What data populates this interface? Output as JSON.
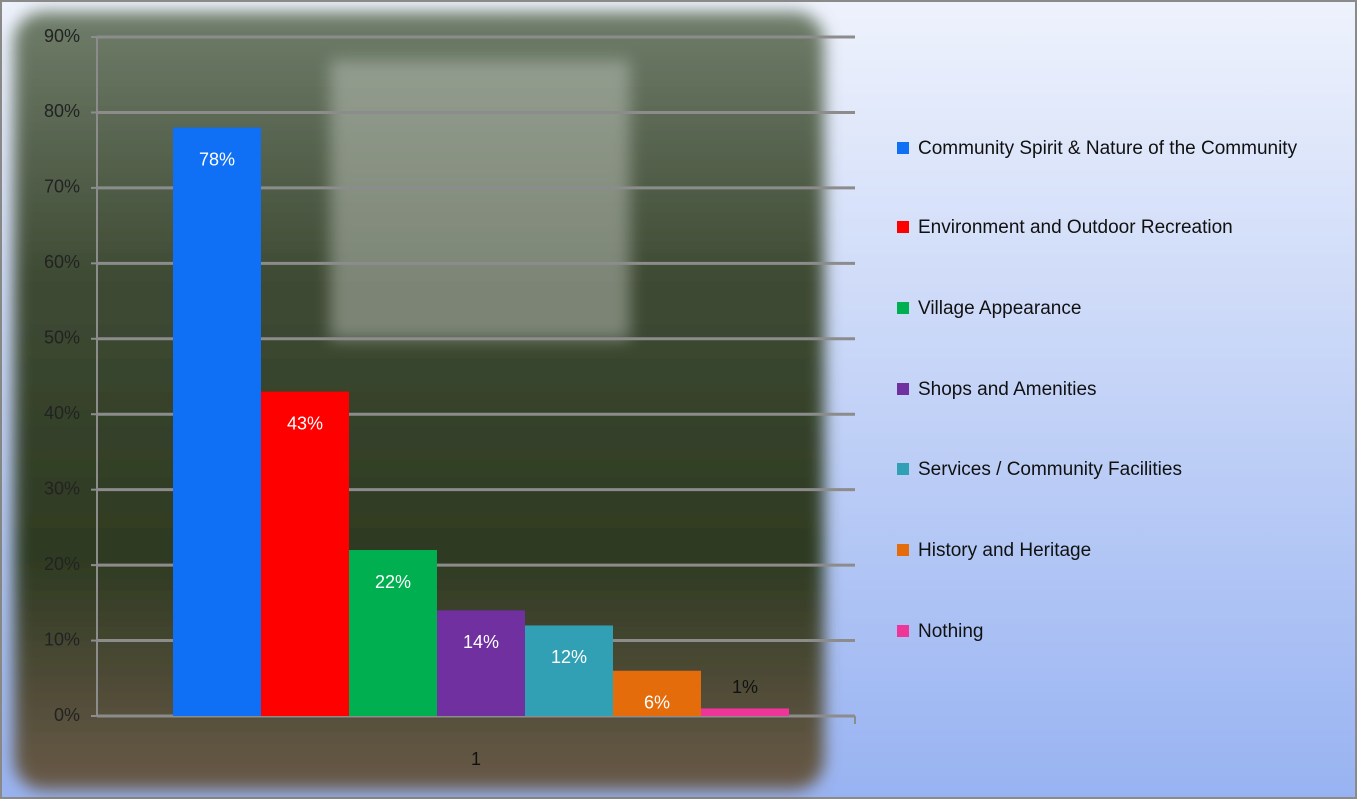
{
  "chart_data": {
    "type": "bar",
    "categories": [
      "1"
    ],
    "series": [
      {
        "name": "Community Spirit & Nature of the Community",
        "color": "#0f6ff5",
        "values": [
          78
        ],
        "value_labels": [
          "78%"
        ]
      },
      {
        "name": "Environment and Outdoor Recreation",
        "color": "#ff0000",
        "values": [
          43
        ],
        "value_labels": [
          "43%"
        ]
      },
      {
        "name": "Village Appearance",
        "color": "#00b050",
        "values": [
          22
        ],
        "value_labels": [
          "22%"
        ]
      },
      {
        "name": "Shops and Amenities",
        "color": "#7030a0",
        "values": [
          14
        ],
        "value_labels": [
          "14%"
        ]
      },
      {
        "name": "Services / Community Facilities",
        "color": "#31a0b4",
        "values": [
          12
        ],
        "value_labels": [
          "12%"
        ]
      },
      {
        "name": "History and Heritage",
        "color": "#e46c0a",
        "values": [
          6
        ],
        "value_labels": [
          "6%"
        ]
      },
      {
        "name": "Nothing",
        "color": "#f0359a",
        "values": [
          1
        ],
        "value_labels": [
          "1%"
        ]
      }
    ],
    "ylim": [
      0,
      90
    ],
    "yticks": [
      {
        "value": 0,
        "label": "0%"
      },
      {
        "value": 10,
        "label": "10%"
      },
      {
        "value": 20,
        "label": "20%"
      },
      {
        "value": 30,
        "label": "30%"
      },
      {
        "value": 40,
        "label": "40%"
      },
      {
        "value": 50,
        "label": "50%"
      },
      {
        "value": 60,
        "label": "60%"
      },
      {
        "value": 70,
        "label": "70%"
      },
      {
        "value": 80,
        "label": "80%"
      },
      {
        "value": 90,
        "label": "90%"
      }
    ],
    "grid": true,
    "legend": "right"
  }
}
